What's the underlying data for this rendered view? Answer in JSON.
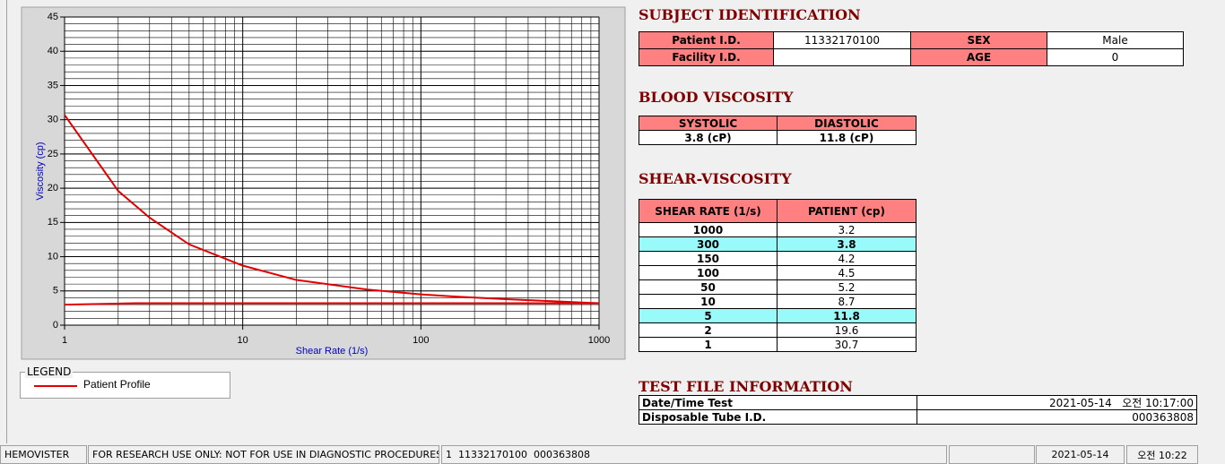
{
  "chart_data": {
    "type": "line",
    "x_label": "Shear Rate (1/s)",
    "y_label": "Viscosity (cp)",
    "x_scale": "log",
    "xlim": [
      1,
      1000
    ],
    "xticks": [
      1,
      10,
      100,
      1000
    ],
    "ylim": [
      0,
      45
    ],
    "yticks": [
      0,
      5,
      10,
      15,
      20,
      25,
      30,
      35,
      40,
      45
    ],
    "grid": true,
    "legend_title": "LEGEND",
    "series": [
      {
        "name": "Patient Profile",
        "color": "#e00000",
        "x": [
          1,
          2,
          3,
          5,
          10,
          20,
          50,
          100,
          150,
          300,
          1000
        ],
        "values": [
          30.7,
          19.6,
          15.7,
          11.8,
          8.7,
          6.6,
          5.2,
          4.5,
          4.2,
          3.8,
          3.2
        ]
      },
      {
        "color": "#e00000",
        "x": [
          1,
          2.5,
          1000
        ],
        "values": [
          3.0,
          3.2,
          3.2
        ]
      }
    ]
  },
  "subject": {
    "title": "SUBJECT IDENTIFICATION",
    "fields": [
      {
        "label": "Patient I.D.",
        "value": "11332170100"
      },
      {
        "label": "SEX",
        "value": "Male"
      },
      {
        "label": "Facility I.D."
      },
      {
        "label": "AGE",
        "value": "0"
      }
    ]
  },
  "blood_viscosity": {
    "title": "BLOOD VISCOSITY",
    "headers": [
      "SYSTOLIC",
      "DIASTOLIC"
    ],
    "values": [
      "3.8 (cP)",
      "11.8 (cP)"
    ]
  },
  "shear_viscosity": {
    "title": "SHEAR-VISCOSITY",
    "headers": [
      "SHEAR RATE (1/s)",
      "PATIENT (cp)"
    ],
    "rows": [
      {
        "cells": [
          "1000",
          "3.2"
        ]
      },
      {
        "cells": [
          "300",
          "3.8"
        ],
        "highlight": true
      },
      {
        "cells": [
          "150",
          "4.2"
        ]
      },
      {
        "cells": [
          "100",
          "4.5"
        ]
      },
      {
        "cells": [
          "50",
          "5.2"
        ]
      },
      {
        "cells": [
          "10",
          "8.7"
        ]
      },
      {
        "cells": [
          "5",
          "11.8"
        ],
        "highlight": true
      },
      {
        "cells": [
          "2",
          "19.6"
        ]
      },
      {
        "cells": [
          "1",
          "30.7"
        ]
      }
    ]
  },
  "test_file": {
    "title": "TEST FILE INFORMATION",
    "rows": [
      [
        "Date/Time Test",
        "2021-05-14   오전 10:17:00"
      ],
      [
        "Disposable Tube I.D.",
        "000363808"
      ]
    ]
  },
  "status_bar": [
    "HEMOVISTER",
    "FOR RESEARCH USE ONLY: NOT FOR USE IN DIAGNOSTIC PROCEDURES",
    "1  11332170100  000363808",
    "2021-05-14",
    "오전 10:22"
  ]
}
